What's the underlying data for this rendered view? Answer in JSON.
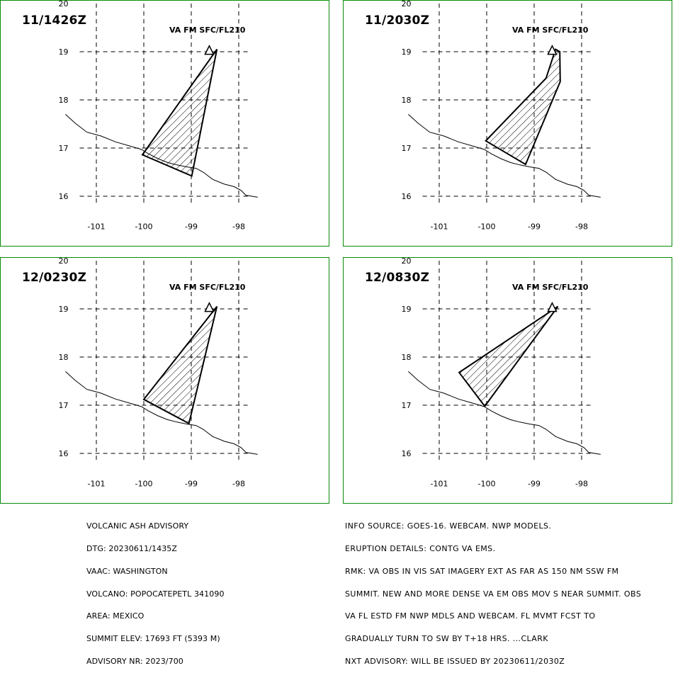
{
  "panels": [
    {
      "time": "11/1426Z",
      "level": "VA FM SFC/FL210",
      "ash_area": [
        [
          -98.46,
          19.05
        ],
        [
          -100.03,
          16.86
        ],
        [
          -98.99,
          16.42
        ]
      ]
    },
    {
      "time": "11/2030Z",
      "level": "VA FM SFC/FL210",
      "ash_area": [
        [
          -98.55,
          19.05
        ],
        [
          -98.75,
          18.45
        ],
        [
          -100.02,
          17.15
        ],
        [
          -99.18,
          16.66
        ],
        [
          -98.45,
          18.38
        ],
        [
          -98.46,
          19.0
        ]
      ]
    },
    {
      "time": "12/0230Z",
      "level": "VA FM SFC/FL210",
      "ash_area": [
        [
          -98.46,
          19.05
        ],
        [
          -100.0,
          17.12
        ],
        [
          -99.05,
          16.62
        ]
      ]
    },
    {
      "time": "12/0830Z",
      "level": "VA FM SFC/FL210",
      "ash_area": [
        [
          -98.5,
          19.05
        ],
        [
          -100.58,
          17.68
        ],
        [
          -100.04,
          16.98
        ]
      ]
    }
  ],
  "map": {
    "x_ticks": [
      "-101",
      "-100",
      "-99",
      "-98"
    ],
    "y_ticks": [
      "20",
      "19",
      "18",
      "17",
      "16"
    ],
    "lon_range": [
      -101.35,
      -97.75
    ],
    "lat_range": [
      15.8,
      20.0
    ],
    "volcano": {
      "lon": -98.62,
      "lat": 19.02
    },
    "coastline": [
      [
        -101.65,
        17.7
      ],
      [
        -101.45,
        17.52
      ],
      [
        -101.2,
        17.33
      ],
      [
        -100.9,
        17.25
      ],
      [
        -100.6,
        17.13
      ],
      [
        -100.25,
        17.03
      ],
      [
        -100.05,
        16.97
      ],
      [
        -99.9,
        16.88
      ],
      [
        -99.7,
        16.78
      ],
      [
        -99.5,
        16.7
      ],
      [
        -99.3,
        16.65
      ],
      [
        -99.1,
        16.61
      ],
      [
        -98.9,
        16.58
      ],
      [
        -98.75,
        16.5
      ],
      [
        -98.55,
        16.35
      ],
      [
        -98.3,
        16.25
      ],
      [
        -98.1,
        16.2
      ],
      [
        -97.95,
        16.12
      ],
      [
        -97.85,
        16.02
      ],
      [
        -97.6,
        15.98
      ]
    ],
    "grid_color": "#000000",
    "frame_color": "#0a8a0a"
  },
  "advisory_left": [
    "VOLCANIC ASH ADVISORY",
    "DTG: 20230611/1435Z",
    "VAAC: WASHINGTON",
    "VOLCANO: POPOCATEPETL 341090",
    "AREA: MEXICO",
    "SUMMIT ELEV: 17693 FT (5393 M)",
    "ADVISORY NR: 2023/700"
  ],
  "advisory_right": [
    "INFO SOURCE: GOES-16. WEBCAM. NWP MODELS.",
    "ERUPTION DETAILS: CONTG VA EMS.",
    "RMK: VA OBS IN VIS SAT IMAGERY EXT AS FAR AS 150 NM SSW FM",
    "SUMMIT. NEW AND MORE DENSE VA EM OBS MOV S NEAR SUMMIT. OBS",
    "VA FL ESTD FM NWP MDLS AND WEBCAM. FL MVMT FCST TO",
    "GRADUALLY TURN TO SW BY T+18 HRS. ...CLARK",
    "NXT ADVISORY: WILL BE ISSUED BY 20230611/2030Z"
  ]
}
